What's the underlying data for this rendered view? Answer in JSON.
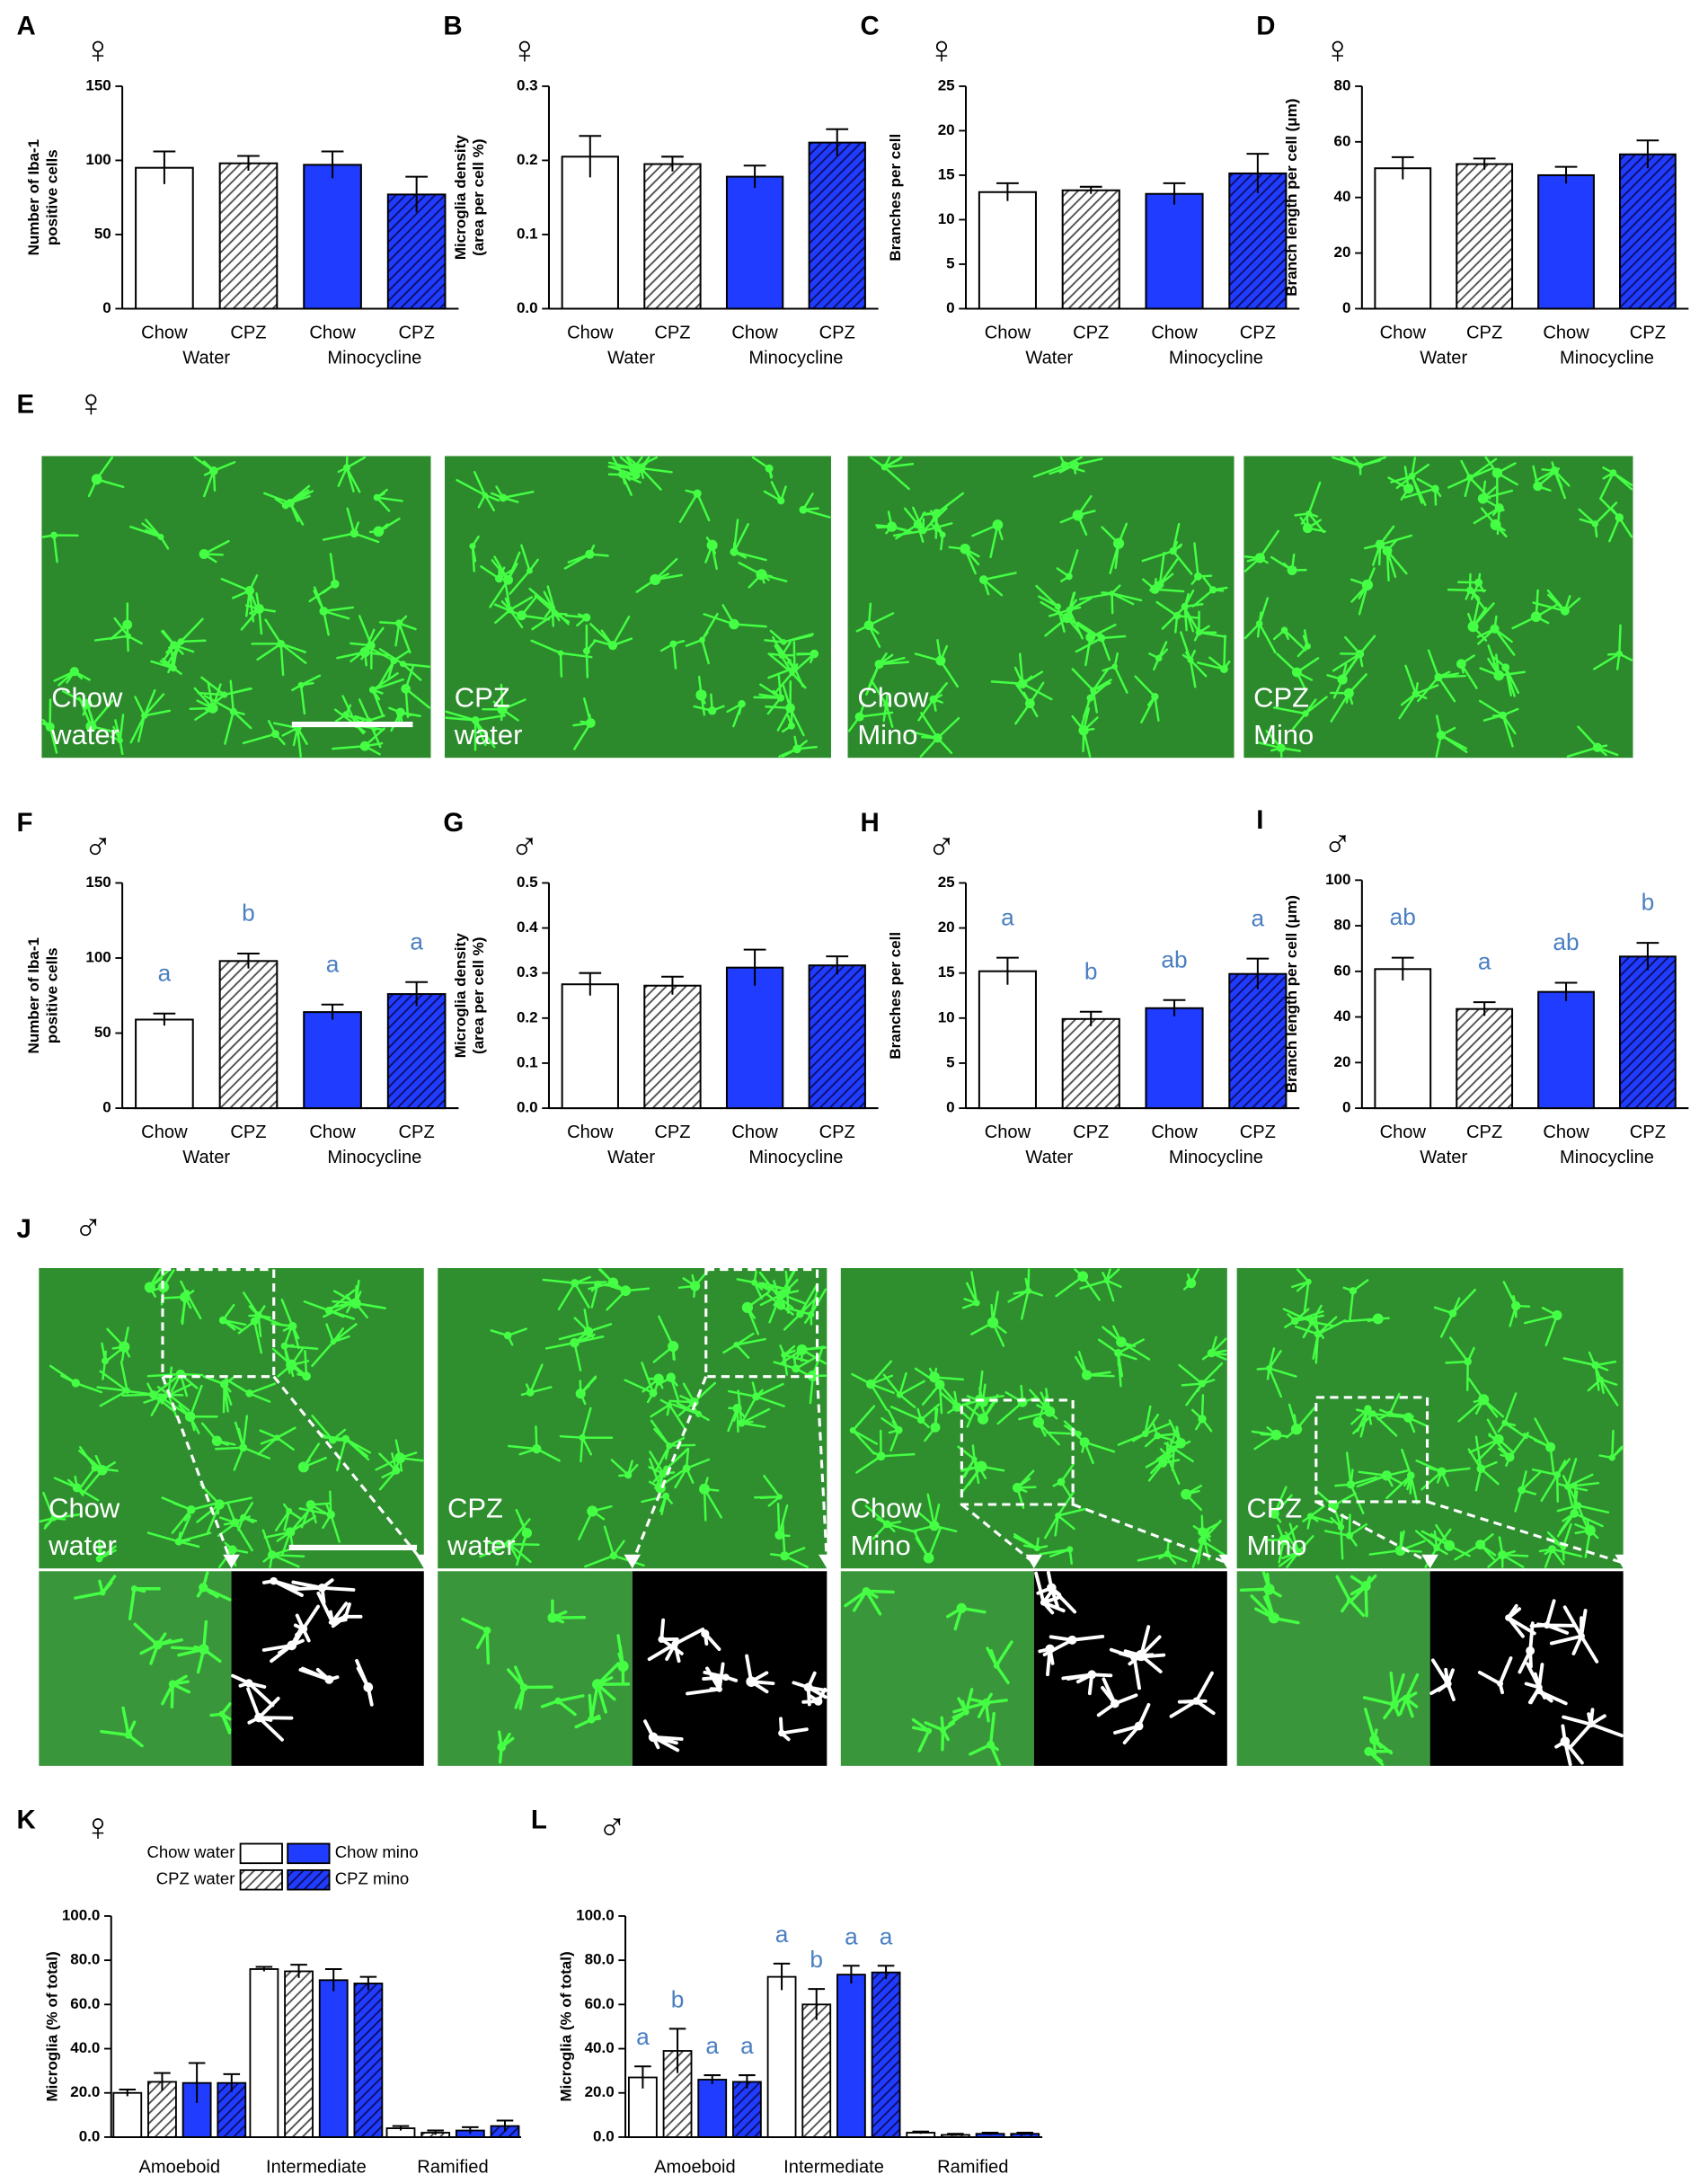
{
  "chart_data": [
    {
      "type": "bar",
      "panel": "A",
      "sex": "♀",
      "y_label": [
        "Number of Iba-1",
        "positive cells"
      ],
      "categories": [
        "Chow",
        "CPZ",
        "Chow",
        "CPZ"
      ],
      "groups": [
        "Water",
        "Minocycline"
      ],
      "values": [
        95,
        98,
        97,
        77
      ],
      "errors": [
        11,
        5,
        9,
        12
      ],
      "colors": [
        "#ffffff",
        "#ffffff",
        "#1f3cff",
        "#1f3cff"
      ],
      "hatch": [
        null,
        "#555555",
        null,
        "#10106a"
      ],
      "ylim": [
        0,
        150
      ],
      "yticks": [
        0,
        50,
        100,
        150
      ]
    },
    {
      "type": "bar",
      "panel": "B",
      "sex": "♀",
      "y_label": [
        "Microglia density",
        "(area per cell %)"
      ],
      "categories": [
        "Chow",
        "CPZ",
        "Chow",
        "CPZ"
      ],
      "groups": [
        "Water",
        "Minocycline"
      ],
      "values": [
        0.205,
        0.195,
        0.178,
        0.224
      ],
      "errors": [
        0.028,
        0.01,
        0.015,
        0.018
      ],
      "colors": [
        "#ffffff",
        "#ffffff",
        "#1f3cff",
        "#1f3cff"
      ],
      "hatch": [
        null,
        "#555555",
        null,
        "#10106a"
      ],
      "ylim": [
        0,
        0.3
      ],
      "yticks": [
        {
          "value": 0,
          "label": "0.0"
        },
        0.1,
        0.2,
        0.3
      ]
    },
    {
      "type": "bar",
      "panel": "C",
      "sex": "♀",
      "y_label": [
        "Branches per cell"
      ],
      "categories": [
        "Chow",
        "CPZ",
        "Chow",
        "CPZ"
      ],
      "groups": [
        "Water",
        "Minocycline"
      ],
      "values": [
        13.1,
        13.3,
        12.9,
        15.2
      ],
      "errors": [
        1,
        0.4,
        1.2,
        2.2
      ],
      "colors": [
        "#ffffff",
        "#ffffff",
        "#1f3cff",
        "#1f3cff"
      ],
      "hatch": [
        null,
        "#555555",
        null,
        "#10106a"
      ],
      "ylim": [
        0,
        25
      ],
      "yticks": [
        0,
        5,
        10,
        15,
        20,
        25
      ]
    },
    {
      "type": "bar",
      "panel": "D",
      "sex": "♀",
      "y_label": [
        "Branch length per cell (μm)"
      ],
      "categories": [
        "Chow",
        "CPZ",
        "Chow",
        "CPZ"
      ],
      "groups": [
        "Water",
        "Minocycline"
      ],
      "values": [
        50.5,
        52,
        48,
        55.5
      ],
      "errors": [
        4,
        2,
        3,
        5
      ],
      "colors": [
        "#ffffff",
        "#ffffff",
        "#1f3cff",
        "#1f3cff"
      ],
      "hatch": [
        null,
        "#555555",
        null,
        "#10106a"
      ],
      "ylim": [
        0,
        80
      ],
      "yticks": [
        0,
        20,
        40,
        60,
        80
      ]
    },
    {
      "type": "bar",
      "panel": "F",
      "sex": "♂",
      "y_label": [
        "Number of Iba-1",
        "positive cells"
      ],
      "categories": [
        "Chow",
        "CPZ",
        "Chow",
        "CPZ"
      ],
      "groups": [
        "Water",
        "Minocycline"
      ],
      "values": [
        59,
        98,
        64,
        76
      ],
      "errors": [
        4,
        5,
        5,
        8
      ],
      "letters": [
        "a",
        "b",
        "a",
        "a"
      ],
      "colors": [
        "#ffffff",
        "#ffffff",
        "#1f3cff",
        "#1f3cff"
      ],
      "hatch": [
        null,
        "#555555",
        null,
        "#10106a"
      ],
      "ylim": [
        0,
        150
      ],
      "yticks": [
        0,
        50,
        100,
        150
      ]
    },
    {
      "type": "bar",
      "panel": "G",
      "sex": "♂",
      "y_label": [
        "Microglia density",
        "(area per cell %)"
      ],
      "categories": [
        "Chow",
        "CPZ",
        "Chow",
        "CPZ"
      ],
      "groups": [
        "Water",
        "Minocycline"
      ],
      "values": [
        0.275,
        0.272,
        0.312,
        0.317
      ],
      "errors": [
        0.025,
        0.02,
        0.04,
        0.02
      ],
      "colors": [
        "#ffffff",
        "#ffffff",
        "#1f3cff",
        "#1f3cff"
      ],
      "hatch": [
        null,
        "#555555",
        null,
        "#10106a"
      ],
      "ylim": [
        0,
        0.5
      ],
      "yticks": [
        {
          "value": 0,
          "label": "0.0"
        },
        0.1,
        0.2,
        0.3,
        0.4,
        0.5
      ]
    },
    {
      "type": "bar",
      "panel": "H",
      "sex": "♂",
      "y_label": [
        "Branches per cell"
      ],
      "categories": [
        "Chow",
        "CPZ",
        "Chow",
        "CPZ"
      ],
      "groups": [
        "Water",
        "Minocycline"
      ],
      "values": [
        15.2,
        9.9,
        11.1,
        14.9
      ],
      "errors": [
        1.5,
        0.8,
        0.9,
        1.7
      ],
      "letters": [
        "a",
        "b",
        "ab",
        "a"
      ],
      "colors": [
        "#ffffff",
        "#ffffff",
        "#1f3cff",
        "#1f3cff"
      ],
      "hatch": [
        null,
        "#555555",
        null,
        "#10106a"
      ],
      "ylim": [
        0,
        25
      ],
      "yticks": [
        0,
        5,
        10,
        15,
        20,
        25
      ]
    },
    {
      "type": "bar",
      "panel": "I",
      "sex": "♂",
      "y_label": [
        "Branch length per cell (μm)"
      ],
      "categories": [
        "Chow",
        "CPZ",
        "Chow",
        "CPZ"
      ],
      "groups": [
        "Water",
        "Minocycline"
      ],
      "values": [
        61,
        43.5,
        51,
        66.5
      ],
      "errors": [
        5,
        3,
        4,
        6
      ],
      "letters": [
        "ab",
        "a",
        "ab",
        "b"
      ],
      "colors": [
        "#ffffff",
        "#ffffff",
        "#1f3cff",
        "#1f3cff"
      ],
      "hatch": [
        null,
        "#555555",
        null,
        "#10106a"
      ],
      "ylim": [
        0,
        100
      ],
      "yticks": [
        0,
        20,
        40,
        60,
        80,
        100
      ]
    },
    {
      "type": "grouped_bar",
      "panel": "K",
      "sex": "♀",
      "y_label": [
        "Microglia (% of total)"
      ],
      "categories": [
        "Amoeboid",
        "Intermediate",
        "Ramified"
      ],
      "series": [
        {
          "name": "Chow water",
          "color": "#ffffff",
          "hatch": null,
          "values": [
            20,
            76,
            4
          ],
          "errors": [
            1.5,
            1,
            1
          ]
        },
        {
          "name": "CPZ water",
          "color": "#ffffff",
          "hatch": "#555555",
          "values": [
            25,
            75,
            2
          ],
          "errors": [
            4,
            3,
            1
          ]
        },
        {
          "name": "Chow mino",
          "color": "#1f3cff",
          "hatch": null,
          "values": [
            24.5,
            71,
            3
          ],
          "errors": [
            9,
            5,
            1.5
          ]
        },
        {
          "name": "CPZ mino",
          "color": "#1f3cff",
          "hatch": "#10106a",
          "values": [
            24.5,
            69.5,
            5
          ],
          "errors": [
            4,
            3,
            2.5
          ]
        }
      ],
      "ylim": [
        0,
        100
      ],
      "yticks": [
        {
          "value": 0,
          "label": "0.0"
        },
        {
          "value": 20,
          "label": "20.0"
        },
        {
          "value": 40,
          "label": "40.0"
        },
        {
          "value": 60,
          "label": "60.0"
        },
        {
          "value": 80,
          "label": "80.0"
        },
        {
          "value": 100,
          "label": "100.0"
        }
      ]
    },
    {
      "type": "grouped_bar",
      "panel": "L",
      "sex": "♂",
      "y_label": [
        "Microglia (% of total)"
      ],
      "categories": [
        "Amoeboid",
        "Intermediate",
        "Ramified"
      ],
      "series": [
        {
          "color": "#ffffff",
          "hatch": null,
          "values": [
            27,
            72.5,
            2
          ],
          "errors": [
            5,
            6,
            0.5
          ],
          "letters": [
            "a",
            "a",
            null
          ]
        },
        {
          "color": "#ffffff",
          "hatch": "#555555",
          "values": [
            39,
            60,
            1
          ],
          "errors": [
            10,
            7,
            0.5
          ],
          "letters": [
            "b",
            "b",
            null
          ]
        },
        {
          "color": "#1f3cff",
          "hatch": null,
          "values": [
            26,
            73.5,
            1.5
          ],
          "errors": [
            2,
            4,
            0.5
          ],
          "letters": [
            "a",
            "a",
            null
          ]
        },
        {
          "color": "#1f3cff",
          "hatch": "#10106a",
          "values": [
            25,
            74.5,
            1.5
          ],
          "errors": [
            3,
            3,
            0.5
          ],
          "letters": [
            "a",
            "a",
            null
          ]
        }
      ],
      "ylim": [
        0,
        100
      ],
      "yticks": [
        {
          "value": 0,
          "label": "0.0"
        },
        {
          "value": 20,
          "label": "20.0"
        },
        {
          "value": 40,
          "label": "40.0"
        },
        {
          "value": 60,
          "label": "60.0"
        },
        {
          "value": 80,
          "label": "80.0"
        },
        {
          "value": 100,
          "label": "100.0"
        }
      ]
    }
  ],
  "image_panels": [
    {
      "panel": "E",
      "sex": "♀",
      "labels": [
        [
          "Chow",
          "water"
        ],
        [
          "CPZ",
          "water"
        ],
        [
          "Chow",
          "Mino"
        ],
        [
          "CPZ",
          "Mino"
        ]
      ]
    },
    {
      "panel": "J",
      "sex": "♂",
      "labels": [
        [
          "Chow",
          "water"
        ],
        [
          "CPZ",
          "water"
        ],
        [
          "Chow",
          "Mino"
        ],
        [
          "CPZ",
          "Mino"
        ]
      ]
    }
  ]
}
